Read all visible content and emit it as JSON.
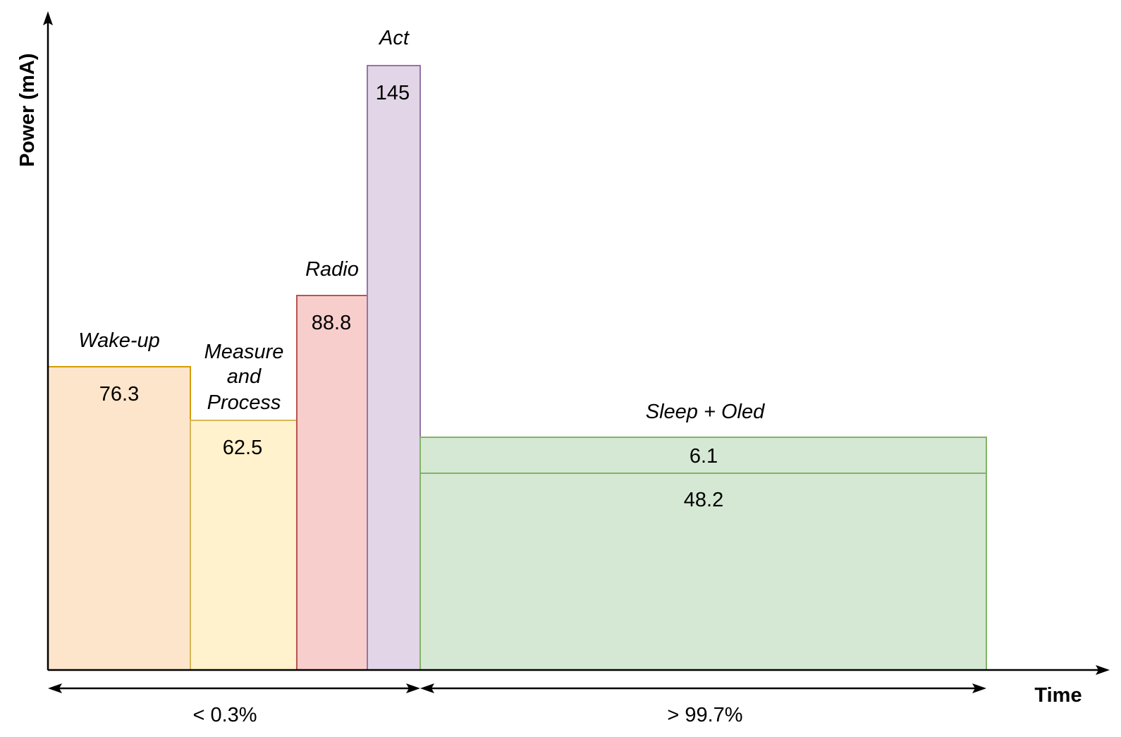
{
  "axes": {
    "y_label": "Power (mA)",
    "x_label": "Time"
  },
  "phases": [
    {
      "name": "Wake-up",
      "value": "76.3",
      "fill": "#fde5cc",
      "stroke": "#d79b00"
    },
    {
      "name": "Measure and Process",
      "name_lines": [
        "Measure",
        "and",
        "Process"
      ],
      "value": "62.5",
      "fill": "#fff2cc",
      "stroke": "#d6b656"
    },
    {
      "name": "Radio",
      "value": "88.8",
      "fill": "#f8cecc",
      "stroke": "#b85450"
    },
    {
      "name": "Act",
      "value": "145",
      "fill": "#e1d5e7",
      "stroke": "#9673a6"
    },
    {
      "name": "Sleep + Oled",
      "value_top": "6.1",
      "value_main": "48.2",
      "fill": "#d5e8d4",
      "stroke": "#82b366"
    }
  ],
  "durations": {
    "active": "< 0.3%",
    "sleep": "> 99.7%"
  }
}
